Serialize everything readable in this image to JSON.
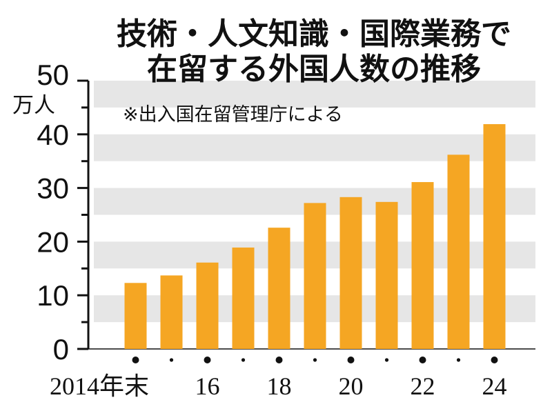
{
  "chart_data": {
    "type": "bar",
    "title_lines": [
      "技術・人文知識・国際業務で",
      "在留する外国人数の推移"
    ],
    "source_note": "※出入国在留管理庁による",
    "y_unit": "万人",
    "ylim": [
      0,
      50
    ],
    "yticks": [
      "0",
      "10",
      "20",
      "30",
      "40",
      "50"
    ],
    "grid": "alternating-bands",
    "bar_color": "#f5a623",
    "band_color": "#e6e6e6",
    "categories": [
      "2014",
      "2015",
      "2016",
      "2017",
      "2018",
      "2019",
      "2020",
      "2021",
      "2022",
      "2023",
      "2024"
    ],
    "values": [
      12.3,
      13.7,
      16.1,
      18.9,
      22.6,
      27.2,
      28.3,
      27.4,
      31.1,
      36.2,
      41.9
    ],
    "x_tick_labels": [
      "2014年末",
      "",
      "16",
      "",
      "18",
      "",
      "20",
      "",
      "22",
      "",
      "24"
    ]
  }
}
